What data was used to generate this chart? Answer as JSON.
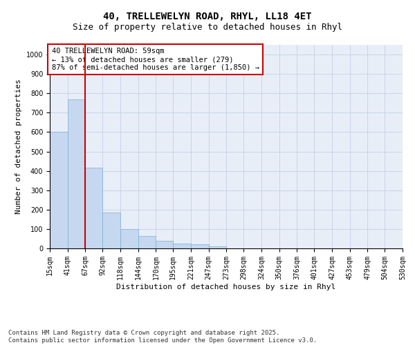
{
  "title_line1": "40, TRELLEWELYN ROAD, RHYL, LL18 4ET",
  "title_line2": "Size of property relative to detached houses in Rhyl",
  "xlabel": "Distribution of detached houses by size in Rhyl",
  "ylabel": "Number of detached properties",
  "bar_color": "#c5d8f0",
  "bar_edge_color": "#7bafd4",
  "grid_color": "#c8d4e8",
  "background_color": "#e8eef8",
  "vline_color": "#cc0000",
  "vline_x_index": 1,
  "annotation_text": "40 TRELLEWELYN ROAD: 59sqm\n← 13% of detached houses are smaller (279)\n87% of semi-detached houses are larger (1,850) →",
  "annotation_box_color": "#ffffff",
  "annotation_box_edge": "#cc0000",
  "bins": [
    15,
    41,
    67,
    92,
    118,
    144,
    170,
    195,
    221,
    247,
    273,
    298,
    324,
    350,
    376,
    401,
    427,
    453,
    479,
    504,
    530
  ],
  "bin_labels": [
    "15sqm",
    "41sqm",
    "67sqm",
    "92sqm",
    "118sqm",
    "144sqm",
    "170sqm",
    "195sqm",
    "221sqm",
    "247sqm",
    "273sqm",
    "298sqm",
    "324sqm",
    "350sqm",
    "376sqm",
    "401sqm",
    "427sqm",
    "453sqm",
    "479sqm",
    "504sqm",
    "530sqm"
  ],
  "bar_heights": [
    600,
    770,
    415,
    185,
    100,
    65,
    40,
    25,
    20,
    10,
    0,
    0,
    0,
    0,
    0,
    0,
    0,
    0,
    0,
    0
  ],
  "ylim": [
    0,
    1050
  ],
  "yticks": [
    0,
    100,
    200,
    300,
    400,
    500,
    600,
    700,
    800,
    900,
    1000
  ],
  "footer_text": "Contains HM Land Registry data © Crown copyright and database right 2025.\nContains public sector information licensed under the Open Government Licence v3.0.",
  "title_fontsize": 10,
  "subtitle_fontsize": 9,
  "axis_label_fontsize": 8,
  "tick_fontsize": 7,
  "annotation_fontsize": 7.5,
  "footer_fontsize": 6.5
}
